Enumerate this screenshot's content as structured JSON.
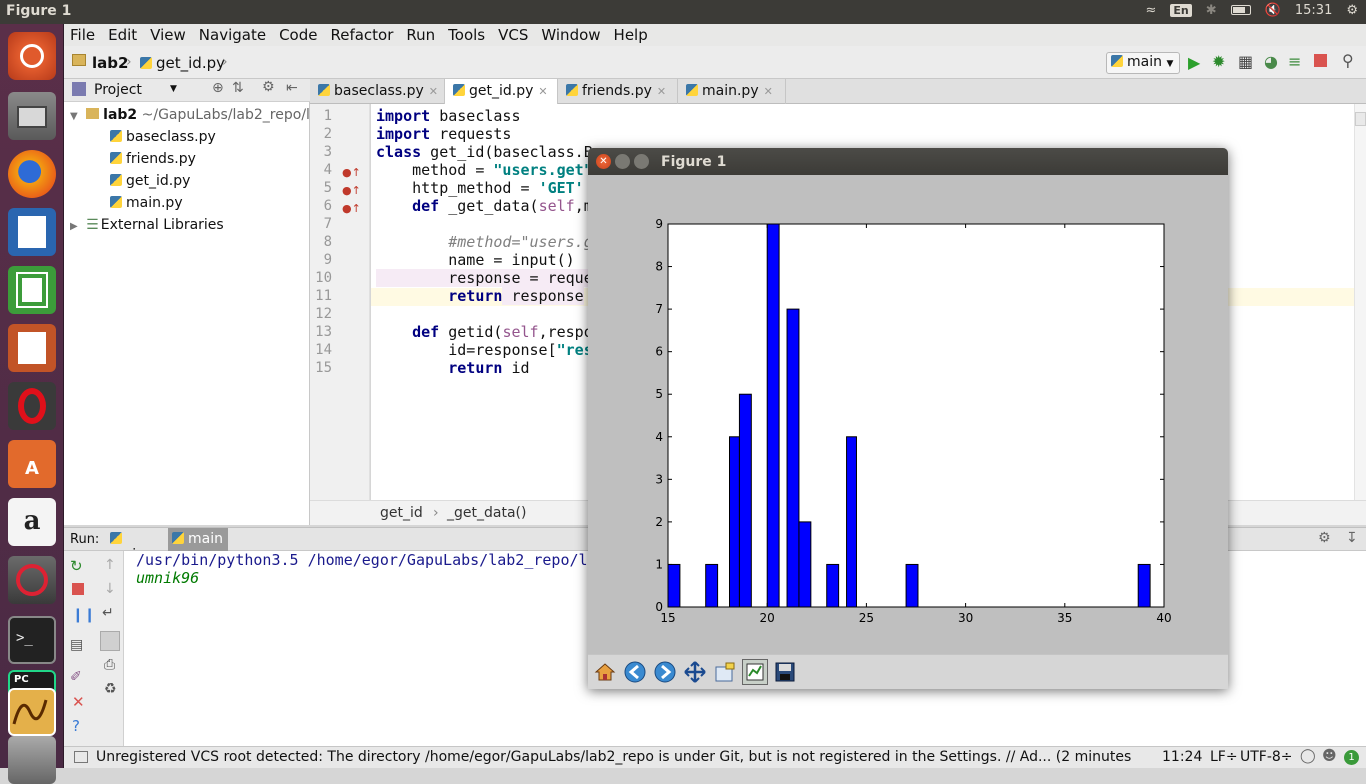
{
  "window_title": "Figure 1",
  "top_bar": {
    "lang": "En",
    "clock": "15:31"
  },
  "menubar": [
    "File",
    "Edit",
    "View",
    "Navigate",
    "Code",
    "Refactor",
    "Run",
    "Tools",
    "VCS",
    "Window",
    "Help"
  ],
  "navbar": {
    "crumb_project": "lab2",
    "crumb_file": "get_id.py",
    "run_config": "main"
  },
  "project_panel": {
    "header": "Project",
    "root": "lab2",
    "root_path": "~/GapuLabs/lab2_repo/l",
    "files": [
      "baseclass.py",
      "friends.py",
      "get_id.py",
      "main.py"
    ],
    "external": "External Libraries"
  },
  "editor_tabs": [
    "baseclass.py",
    "get_id.py",
    "friends.py",
    "main.py"
  ],
  "editor_breadcrumb": {
    "cls": "get_id",
    "sep": "›",
    "method": "_get_data()"
  },
  "line_numbers": [
    "1",
    "2",
    "3",
    "4",
    "5",
    "6",
    "7",
    "8",
    "9",
    "10",
    "11",
    "12",
    "13",
    "14",
    "15"
  ],
  "code": {
    "l1_kw": "import",
    "l1_rest": " baseclass",
    "l2_kw": "import",
    "l2_rest": " requests",
    "l3_kw": "class",
    "l3_rest": " get_id(baseclass.B",
    "l4_a": "    method = ",
    "l4_str": "\"users.get\"",
    "l5_a": "    http_method = ",
    "l5_str": "'GET'",
    "l6_kw": "    def",
    "l6_a": " _get_data(",
    "l6_self": "self",
    "l6_b": ",m",
    "l8_cmt": "        #method=\"users.g",
    "l9_a": "        name = input()",
    "l10_a": "        response = reque",
    "l11_kw": "        return",
    "l11_a": " response",
    "l13_kw": "    def",
    "l13_a": " getid(",
    "l13_self": "self",
    "l13_b": ",respo",
    "l14_a": "        id=response[",
    "l14_str": "\"res",
    "l15_kw": "        return",
    "l15_a": " id"
  },
  "run_panel": {
    "label": "Run:",
    "tabs": [
      "main",
      "main"
    ],
    "output_cmd": "/usr/bin/python3.5 /home/egor/GapuLabs/lab2_repo/la",
    "output_line": "umnik96"
  },
  "status_bar": {
    "message": "Unregistered VCS root detected: The directory /home/egor/GapuLabs/lab2_repo is under Git, but is not registered in the Settings. // Ad... (2 minutes ago)",
    "position": "11:24",
    "line_sep": "LF÷",
    "encoding": "UTF-8÷",
    "badge": "1"
  },
  "figure": {
    "title": "Figure 1",
    "bar_color": "#0000ff",
    "chart_data": {
      "type": "bar",
      "title": "",
      "xlabel": "",
      "ylabel": "",
      "xlim": [
        15,
        40
      ],
      "ylim": [
        0,
        9
      ],
      "xticks": [
        "15",
        "20",
        "25",
        "30",
        "35",
        "40"
      ],
      "yticks": [
        "0",
        "1",
        "2",
        "3",
        "4",
        "5",
        "6",
        "7",
        "8",
        "9"
      ],
      "bars": [
        {
          "x0": 15.0,
          "x1": 15.6,
          "value": 1
        },
        {
          "x0": 16.9,
          "x1": 17.5,
          "value": 1
        },
        {
          "x0": 18.1,
          "x1": 18.6,
          "value": 4
        },
        {
          "x0": 18.6,
          "x1": 19.2,
          "value": 5
        },
        {
          "x0": 20.0,
          "x1": 20.6,
          "value": 9
        },
        {
          "x0": 21.0,
          "x1": 21.6,
          "value": 7
        },
        {
          "x0": 21.6,
          "x1": 22.2,
          "value": 2
        },
        {
          "x0": 23.0,
          "x1": 23.6,
          "value": 1
        },
        {
          "x0": 24.0,
          "x1": 24.5,
          "value": 4
        },
        {
          "x0": 27.0,
          "x1": 27.6,
          "value": 1
        },
        {
          "x0": 38.7,
          "x1": 39.3,
          "value": 1
        }
      ]
    }
  }
}
